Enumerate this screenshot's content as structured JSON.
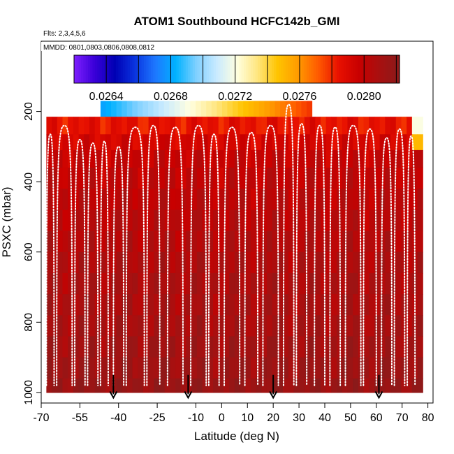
{
  "chart_data": {
    "type": "heatmap",
    "title": "ATOM1 Southbound HCFC142b_GMI",
    "flights_label": "Flts: 2,3,4,5,6",
    "dates_label": "MMDD: 0801,0803,0806,0808,0812",
    "xlabel": "Latitude (deg N)",
    "ylabel": "PSXC (mbar)",
    "xlim": [
      -70,
      82
    ],
    "ylim": [
      1030,
      0
    ],
    "x_ticks": [
      -70,
      -55,
      -40,
      -25,
      -10,
      0,
      10,
      20,
      30,
      40,
      50,
      60,
      70,
      80
    ],
    "x_tick_labels": [
      "-70",
      "-55",
      "-40",
      "-25",
      "-10",
      "0",
      "10",
      "20",
      "30",
      "40",
      "50",
      "60",
      "70",
      "80"
    ],
    "y_ticks": [
      200,
      400,
      600,
      800,
      1000
    ],
    "y_tick_labels": [
      "200",
      "400",
      "600",
      "800",
      "1000"
    ],
    "colorbar": {
      "range": [
        0.0262,
        0.02822
      ],
      "tick_values": [
        0.0264,
        0.0268,
        0.0272,
        0.0276,
        0.028
      ],
      "tick_labels": [
        "0.0264",
        "0.0268",
        "0.0272",
        "0.0276",
        "0.0280"
      ],
      "colors": [
        "#7f1fff",
        "#3a00d8",
        "#0000b4",
        "#0a35e0",
        "#1e78ff",
        "#00b2ff",
        "#7fd0ff",
        "#c8eaff",
        "#ffffe0",
        "#ffe680",
        "#ffc400",
        "#ff9b00",
        "#ff5a00",
        "#e81000",
        "#c80000",
        "#a81010",
        "#8b1a1a"
      ]
    },
    "field": {
      "lat_range": [
        -68,
        78
      ],
      "top_band": {
        "lat": [
          -47,
          35
        ],
        "p": [
          170,
          215
        ],
        "v0": 0.0268,
        "v1": 0.0278
      },
      "edge_blue_lat": 75,
      "surface_lat_start": -68
    },
    "profile_rows_mbar": [
      215,
      265,
      310,
      360,
      420,
      480,
      540,
      600,
      660,
      720,
      780,
      840,
      900,
      960,
      1000
    ],
    "profile_row_values": [
      0.02785,
      0.02792,
      0.02798,
      0.028,
      0.02802,
      0.02803,
      0.02805,
      0.02807,
      0.02808,
      0.02809,
      0.0281,
      0.02812,
      0.02814,
      0.02816,
      0.02818
    ],
    "profiles": [
      {
        "lat0": -68,
        "lat1": -65,
        "top": 265
      },
      {
        "lat0": -64,
        "lat1": -58,
        "top": 240
      },
      {
        "lat0": -57,
        "lat1": -53,
        "top": 280
      },
      {
        "lat0": -52,
        "lat1": -48,
        "top": 290
      },
      {
        "lat0": -47,
        "lat1": -44,
        "top": 285
      },
      {
        "lat0": -42,
        "lat1": -38,
        "top": 300
      },
      {
        "lat0": -37,
        "lat1": -30,
        "top": 245
      },
      {
        "lat0": -29,
        "lat1": -24,
        "top": 240
      },
      {
        "lat0": -21,
        "lat1": -15,
        "top": 245
      },
      {
        "lat0": -12,
        "lat1": -6,
        "top": 240
      },
      {
        "lat0": -5,
        "lat1": -1,
        "top": 265
      },
      {
        "lat0": 1,
        "lat1": 7,
        "top": 245
      },
      {
        "lat0": 9,
        "lat1": 14,
        "top": 260
      },
      {
        "lat0": 16,
        "lat1": 22,
        "top": 240
      },
      {
        "lat0": 24,
        "lat1": 28,
        "top": 180
      },
      {
        "lat0": 29,
        "lat1": 33,
        "top": 235
      },
      {
        "lat0": 36,
        "lat1": 40,
        "top": 240
      },
      {
        "lat0": 42,
        "lat1": 46,
        "top": 245
      },
      {
        "lat0": 48,
        "lat1": 54,
        "top": 240
      },
      {
        "lat0": 55,
        "lat1": 60,
        "top": 250
      },
      {
        "lat0": 62,
        "lat1": 66,
        "top": 275
      },
      {
        "lat0": 67,
        "lat1": 71,
        "top": 250
      },
      {
        "lat0": 72,
        "lat1": 75,
        "top": 270
      }
    ],
    "arrows_lat": [
      -42,
      -13,
      20,
      61
    ]
  }
}
